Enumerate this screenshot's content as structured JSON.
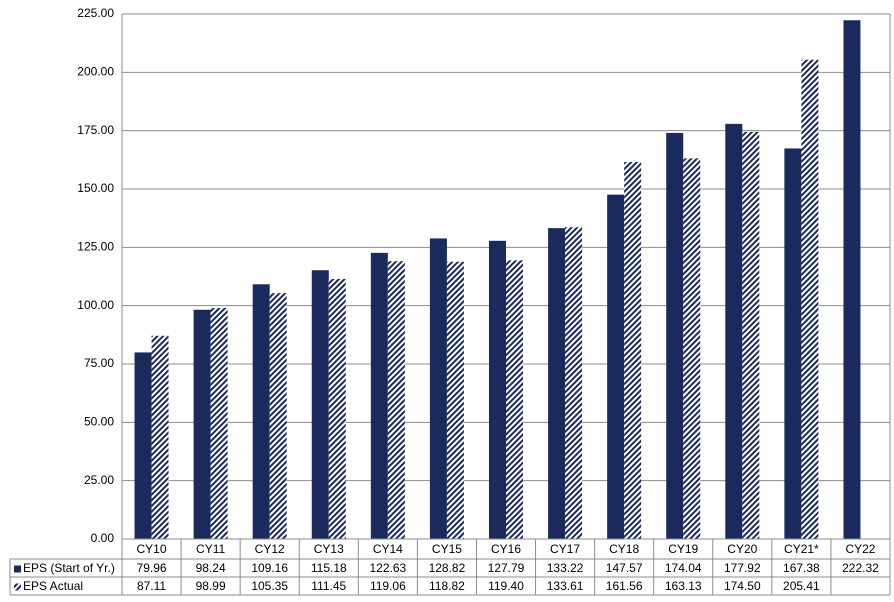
{
  "chart_data": {
    "type": "bar",
    "categories": [
      "CY10",
      "CY11",
      "CY12",
      "CY13",
      "CY14",
      "CY15",
      "CY16",
      "CY17",
      "CY18",
      "CY19",
      "CY20",
      "CY21*",
      "CY22"
    ],
    "series": [
      {
        "name": "EPS (Start of Yr.)",
        "color": "#1b2a5c",
        "fill_style": "solid",
        "values": [
          79.96,
          98.24,
          109.16,
          115.18,
          122.63,
          128.82,
          127.79,
          133.22,
          147.57,
          174.04,
          177.92,
          167.38,
          222.32
        ],
        "value_labels": [
          "79.96",
          "98.24",
          "109.16",
          "115.18",
          "122.63",
          "128.82",
          "127.79",
          "133.22",
          "147.57",
          "174.04",
          "177.92",
          "167.38",
          "222.32"
        ]
      },
      {
        "name": "EPS Actual",
        "color": "#1b2a5c",
        "fill_style": "hatched",
        "values": [
          87.11,
          98.99,
          105.35,
          111.45,
          119.06,
          118.82,
          119.4,
          133.61,
          161.56,
          163.13,
          174.5,
          205.41,
          null
        ],
        "value_labels": [
          "87.11",
          "98.99",
          "105.35",
          "111.45",
          "119.06",
          "118.82",
          "119.40",
          "133.61",
          "161.56",
          "163.13",
          "174.50",
          "205.41",
          null
        ]
      }
    ],
    "ylim": [
      0,
      225
    ],
    "yticks": [
      {
        "value": 0,
        "label": "0.00"
      },
      {
        "value": 25,
        "label": "25.00"
      },
      {
        "value": 50,
        "label": "50.00"
      },
      {
        "value": 75,
        "label": "75.00"
      },
      {
        "value": 100,
        "label": "100.00"
      },
      {
        "value": 125,
        "label": "125.00"
      },
      {
        "value": 150,
        "label": "150.00"
      },
      {
        "value": 175,
        "label": "175.00"
      },
      {
        "value": 200,
        "label": "200.00"
      },
      {
        "value": 225,
        "label": "225.00"
      }
    ],
    "grid": true
  }
}
